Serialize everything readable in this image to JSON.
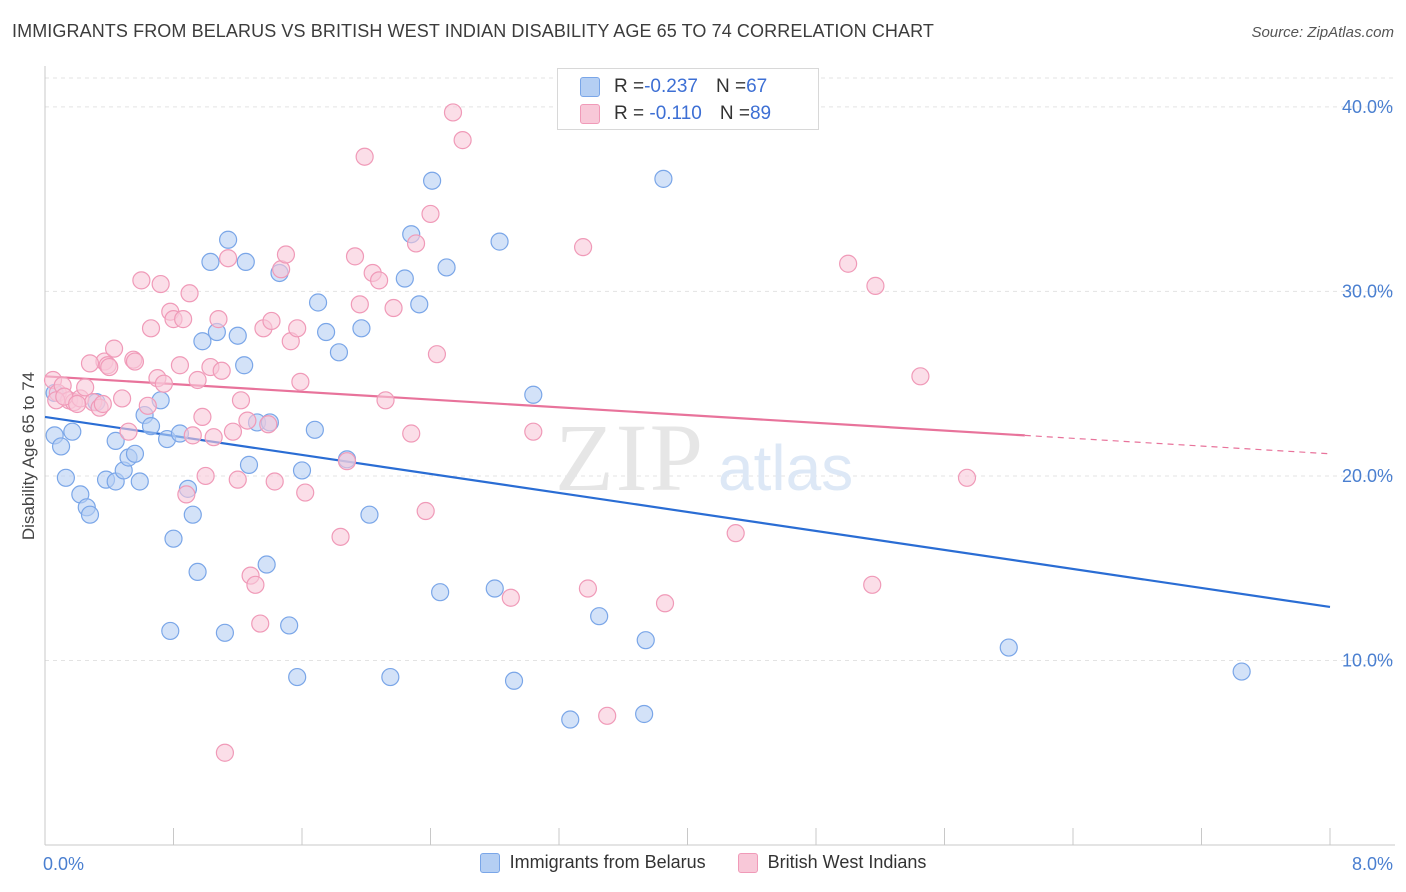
{
  "title": "IMMIGRANTS FROM BELARUS VS BRITISH WEST INDIAN DISABILITY AGE 65 TO 74 CORRELATION CHART",
  "source": "Source: ZipAtlas.com",
  "watermark": {
    "zip": "ZIP",
    "atlas": "atlas"
  },
  "legend_top": {
    "rows": [
      {
        "r_label": "R = ",
        "r_value": "-0.237",
        "n_label": "N = ",
        "n_value": "67"
      },
      {
        "r_label": "R = ",
        "r_value": " -0.110",
        "n_label": "N = ",
        "n_value": "89"
      }
    ]
  },
  "chart_data": {
    "type": "scatter",
    "ylabel": "Disability Age 65 to 74",
    "xlim": [
      0,
      8
    ],
    "ylim": [
      0,
      42
    ],
    "y_ticks": [
      {
        "value": 10,
        "label": "10.0%"
      },
      {
        "value": 20,
        "label": "20.0%"
      },
      {
        "value": 30,
        "label": "30.0%"
      },
      {
        "value": 40,
        "label": "40.0%"
      }
    ],
    "x_tick_labels": {
      "min": "0.0%",
      "max": "8.0%"
    },
    "x_minor_ticks": [
      0.8,
      1.6,
      2.4,
      3.2,
      4.0,
      4.8,
      5.6,
      6.4,
      7.2,
      8.0
    ],
    "grid": true,
    "legend_position": "bottom",
    "series": [
      {
        "name": "Immigrants from Belarus",
        "color": "#7aa6e8",
        "fill": "#b5cff3",
        "line_color": "#2a6dd4",
        "trend": {
          "x0": 0.0,
          "y0": 23.2,
          "x1": 8.0,
          "y1": 12.9,
          "dashed_from": null
        },
        "points": [
          [
            0.06,
            22.2
          ],
          [
            0.1,
            21.6
          ],
          [
            0.17,
            22.4
          ],
          [
            0.13,
            19.9
          ],
          [
            0.22,
            19.0
          ],
          [
            0.26,
            18.3
          ],
          [
            0.28,
            17.9
          ],
          [
            0.06,
            24.5
          ],
          [
            0.32,
            24.0
          ],
          [
            0.38,
            19.8
          ],
          [
            0.44,
            19.7
          ],
          [
            0.44,
            21.9
          ],
          [
            0.49,
            20.3
          ],
          [
            0.52,
            21.0
          ],
          [
            0.56,
            21.2
          ],
          [
            0.59,
            19.7
          ],
          [
            0.62,
            23.3
          ],
          [
            0.66,
            22.7
          ],
          [
            0.72,
            24.1
          ],
          [
            0.76,
            22.0
          ],
          [
            0.84,
            22.3
          ],
          [
            0.8,
            16.6
          ],
          [
            0.89,
            19.3
          ],
          [
            0.92,
            17.9
          ],
          [
            0.95,
            14.8
          ],
          [
            0.78,
            11.6
          ],
          [
            0.98,
            27.3
          ],
          [
            1.03,
            31.6
          ],
          [
            1.07,
            27.8
          ],
          [
            1.12,
            11.5
          ],
          [
            1.14,
            32.8
          ],
          [
            1.2,
            27.6
          ],
          [
            1.24,
            26.0
          ],
          [
            1.25,
            31.6
          ],
          [
            1.27,
            20.6
          ],
          [
            1.32,
            22.9
          ],
          [
            1.4,
            22.9
          ],
          [
            1.38,
            15.2
          ],
          [
            1.46,
            31.0
          ],
          [
            1.52,
            11.9
          ],
          [
            1.57,
            9.1
          ],
          [
            1.6,
            20.3
          ],
          [
            1.68,
            22.5
          ],
          [
            1.7,
            29.4
          ],
          [
            1.75,
            27.8
          ],
          [
            1.83,
            26.7
          ],
          [
            1.88,
            20.9
          ],
          [
            1.97,
            28.0
          ],
          [
            2.02,
            17.9
          ],
          [
            2.15,
            9.1
          ],
          [
            2.24,
            30.7
          ],
          [
            2.28,
            33.1
          ],
          [
            2.33,
            29.3
          ],
          [
            2.41,
            36.0
          ],
          [
            2.46,
            13.7
          ],
          [
            2.5,
            31.3
          ],
          [
            2.8,
            13.9
          ],
          [
            2.83,
            32.7
          ],
          [
            2.92,
            8.9
          ],
          [
            3.04,
            24.4
          ],
          [
            3.27,
            6.8
          ],
          [
            3.45,
            12.4
          ],
          [
            3.74,
            11.1
          ],
          [
            3.73,
            7.1
          ],
          [
            3.85,
            36.1
          ],
          [
            6.0,
            10.7
          ],
          [
            7.45,
            9.4
          ]
        ]
      },
      {
        "name": "British West Indians",
        "color": "#f09ab8",
        "fill": "#f8c8d8",
        "line_color": "#e8739b",
        "trend": {
          "x0": 0.0,
          "y0": 25.4,
          "x1": 8.0,
          "y1": 21.2,
          "dashed_from": 6.1
        },
        "points": [
          [
            0.05,
            25.2
          ],
          [
            0.08,
            24.5
          ],
          [
            0.11,
            24.9
          ],
          [
            0.15,
            24.1
          ],
          [
            0.18,
            24.0
          ],
          [
            0.22,
            24.2
          ],
          [
            0.25,
            24.8
          ],
          [
            0.3,
            24.0
          ],
          [
            0.34,
            23.7
          ],
          [
            0.37,
            26.2
          ],
          [
            0.39,
            26.0
          ],
          [
            0.43,
            26.9
          ],
          [
            0.48,
            24.2
          ],
          [
            0.52,
            22.4
          ],
          [
            0.55,
            26.3
          ],
          [
            0.56,
            26.2
          ],
          [
            0.6,
            30.6
          ],
          [
            0.64,
            23.8
          ],
          [
            0.66,
            28.0
          ],
          [
            0.7,
            25.3
          ],
          [
            0.72,
            30.4
          ],
          [
            0.74,
            25.0
          ],
          [
            0.78,
            28.9
          ],
          [
            0.8,
            28.5
          ],
          [
            0.84,
            26.0
          ],
          [
            0.86,
            28.5
          ],
          [
            0.88,
            19.0
          ],
          [
            0.9,
            29.9
          ],
          [
            0.92,
            22.2
          ],
          [
            0.95,
            25.2
          ],
          [
            0.98,
            23.2
          ],
          [
            1.0,
            20.0
          ],
          [
            1.03,
            25.9
          ],
          [
            1.05,
            22.1
          ],
          [
            1.08,
            28.5
          ],
          [
            1.1,
            25.7
          ],
          [
            1.12,
            5.0
          ],
          [
            1.14,
            31.8
          ],
          [
            1.17,
            22.4
          ],
          [
            1.2,
            19.8
          ],
          [
            1.22,
            24.1
          ],
          [
            1.26,
            23.0
          ],
          [
            1.28,
            14.6
          ],
          [
            1.31,
            14.1
          ],
          [
            1.34,
            12.0
          ],
          [
            1.36,
            28.0
          ],
          [
            1.39,
            22.8
          ],
          [
            1.41,
            28.4
          ],
          [
            1.43,
            19.7
          ],
          [
            1.47,
            31.2
          ],
          [
            1.5,
            32.0
          ],
          [
            1.53,
            27.3
          ],
          [
            1.57,
            28.0
          ],
          [
            1.59,
            25.1
          ],
          [
            1.62,
            19.1
          ],
          [
            1.84,
            16.7
          ],
          [
            1.88,
            20.8
          ],
          [
            1.93,
            31.9
          ],
          [
            1.96,
            29.3
          ],
          [
            1.99,
            37.3
          ],
          [
            2.04,
            31.0
          ],
          [
            2.08,
            30.6
          ],
          [
            2.12,
            24.1
          ],
          [
            2.17,
            29.1
          ],
          [
            2.28,
            22.3
          ],
          [
            2.31,
            32.6
          ],
          [
            2.37,
            18.1
          ],
          [
            2.4,
            34.2
          ],
          [
            2.44,
            26.6
          ],
          [
            2.54,
            39.7
          ],
          [
            2.6,
            38.2
          ],
          [
            2.9,
            13.4
          ],
          [
            3.04,
            22.4
          ],
          [
            3.35,
            32.4
          ],
          [
            3.38,
            13.9
          ],
          [
            3.5,
            7.0
          ],
          [
            3.86,
            13.1
          ],
          [
            4.3,
            16.9
          ],
          [
            5.0,
            31.5
          ],
          [
            5.15,
            14.1
          ],
          [
            5.17,
            30.3
          ],
          [
            5.45,
            25.4
          ],
          [
            5.74,
            19.9
          ],
          [
            0.07,
            24.1
          ],
          [
            0.12,
            24.3
          ],
          [
            0.2,
            23.9
          ],
          [
            0.28,
            26.1
          ],
          [
            0.4,
            25.9
          ],
          [
            0.36,
            23.9
          ]
        ]
      }
    ]
  },
  "legend_bottom": [
    {
      "label": "Immigrants from Belarus"
    },
    {
      "label": "British West Indians"
    }
  ],
  "colors": {
    "blue_fill": "#b5cff3",
    "blue_stroke": "#7aa6e8",
    "pink_fill": "#f8c8d8",
    "pink_stroke": "#f09ab8",
    "tick_text": "#4a7fd0",
    "grid": "#e3e3e3"
  }
}
